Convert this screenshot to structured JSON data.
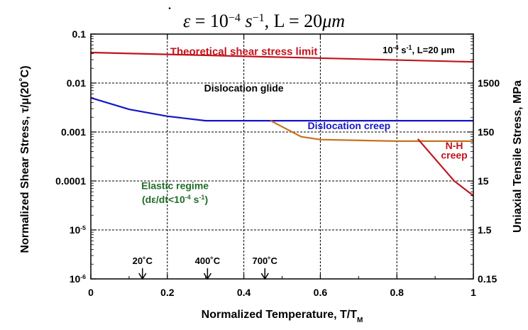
{
  "chart_data": {
    "type": "line",
    "title_parts": {
      "eps": "ε",
      "dot": "·",
      "eq": " = 10",
      "exp1": "−4",
      "s": " s",
      "exp2": "−1",
      "rest": ", L = 20",
      "mu": "μm"
    },
    "xlabel": "Normalized Temperature, T/T",
    "xlabel_sub": "M",
    "ylabel": "Normalized Shear Stress, τ/μ(20˚C)",
    "ylabel_right": "Uniaxial Tensile Stress, MPa",
    "xlim": [
      0,
      1
    ],
    "ylim": [
      1e-06,
      0.1
    ],
    "yscale": "log",
    "grid": true,
    "x_ticks": [
      0,
      0.2,
      0.4,
      0.6,
      0.8,
      1
    ],
    "x_tick_labels": [
      "0",
      "0.2",
      "0.4",
      "0.6",
      "0.8",
      "1"
    ],
    "y_ticks": [
      {
        "value": 0.1,
        "label": "0.1"
      },
      {
        "value": 0.01,
        "label": "0.01"
      },
      {
        "value": 0.001,
        "label": "0.001"
      },
      {
        "value": 0.0001,
        "label": "0.0001"
      },
      {
        "value": 1e-05,
        "label": "10",
        "exp": "-5"
      },
      {
        "value": 1e-06,
        "label": "10",
        "exp": "-6"
      }
    ],
    "y_right_ticks": [
      {
        "value": 0.01,
        "label": "1500"
      },
      {
        "value": 0.001,
        "label": "150"
      },
      {
        "value": 0.0001,
        "label": "15"
      },
      {
        "value": 1e-05,
        "label": "1.5"
      },
      {
        "value": 1e-06,
        "label": "0.15"
      }
    ],
    "series": [
      {
        "name": "Theoretical shear stress limit",
        "color": "#c0141c",
        "x": [
          0,
          1
        ],
        "y": [
          0.042,
          0.027
        ]
      },
      {
        "name": "Dislocation glide",
        "color": "#1515c8",
        "x": [
          0,
          0.1,
          0.2,
          0.3,
          1
        ],
        "y": [
          0.005,
          0.0029,
          0.0021,
          0.0017,
          0.0017
        ]
      },
      {
        "name": "Dislocation creep",
        "color": "#c8701e",
        "x": [
          0.47,
          0.55,
          0.6,
          0.8,
          1
        ],
        "y": [
          0.0017,
          0.0008,
          0.0007,
          0.00065,
          0.00065
        ]
      },
      {
        "name": "N-H creep",
        "color": "#c0141c",
        "x": [
          0.855,
          0.95,
          1
        ],
        "y": [
          0.00072,
          0.0001,
          5e-05
        ]
      }
    ],
    "annotations": [
      {
        "id": "theoretical",
        "text": "Theoretical shear stress limit",
        "color": "#c0141c",
        "x": 0.4,
        "y": 0.044
      },
      {
        "id": "glide",
        "text": "Dislocation glide",
        "color": "#000000",
        "x": 0.4,
        "y": 0.0079
      },
      {
        "id": "creep",
        "text": "Dislocation creep",
        "color": "#1515c8",
        "x": 0.675,
        "y": 0.00135
      },
      {
        "id": "nh1",
        "text": "N-H",
        "color": "#c0141c",
        "x": 0.95,
        "y": 0.00053
      },
      {
        "id": "nh2",
        "text": "creep",
        "color": "#c0141c",
        "x": 0.95,
        "y": 0.00034
      },
      {
        "id": "elastic1",
        "text": "Elastic regime",
        "color": "#1e6e28",
        "x": 0.22,
        "y": 8e-05
      },
      {
        "id": "elastic2",
        "text": "(dε/dt<10",
        "exp": "-4",
        "tail": " s",
        "exp2": "-1",
        "close": ")",
        "color": "#1e6e28",
        "x": 0.22,
        "y": 4.2e-05
      }
    ],
    "box_label": {
      "text": "10",
      "exp": "-4",
      "mid": " s",
      "exp2": "-1",
      "rest": ", L=20 μm"
    },
    "temperature_markers": [
      {
        "label": "20˚C",
        "x": 0.135
      },
      {
        "label": "400˚C",
        "x": 0.305
      },
      {
        "label": "700˚C",
        "x": 0.455
      }
    ]
  }
}
